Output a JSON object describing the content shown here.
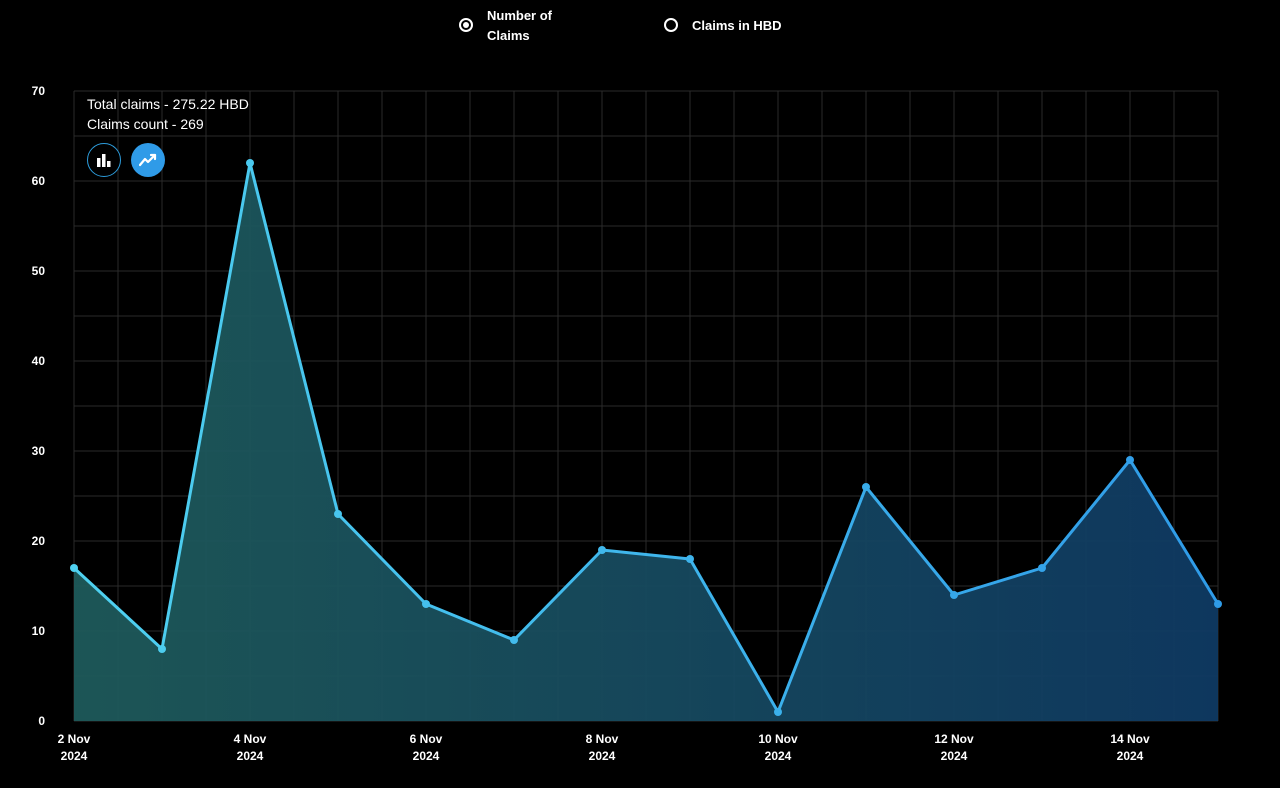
{
  "toggle": {
    "options": [
      {
        "label_line1": "Number of",
        "label_line2": "Claims",
        "selected": true
      },
      {
        "label": "Claims in HBD",
        "selected": false
      }
    ]
  },
  "summary": {
    "total_claims": "Total claims - 275.22 HBD",
    "claims_count": "Claims count - 269"
  },
  "chart_type_buttons": [
    {
      "icon": "bar-chart-icon",
      "active": false
    },
    {
      "icon": "line-chart-icon",
      "active": true
    }
  ],
  "chart_data": {
    "type": "area",
    "x": [
      "2024-11-02",
      "2024-11-03",
      "2024-11-04",
      "2024-11-05",
      "2024-11-06",
      "2024-11-07",
      "2024-11-08",
      "2024-11-09",
      "2024-11-10",
      "2024-11-11",
      "2024-11-12",
      "2024-11-13",
      "2024-11-14",
      "2024-11-15"
    ],
    "values": [
      17,
      8,
      62,
      23,
      13,
      9,
      19,
      18,
      1,
      26,
      14,
      17,
      29,
      13
    ],
    "ylim": [
      0,
      70
    ],
    "yticks": [
      0,
      10,
      20,
      30,
      40,
      50,
      60,
      70
    ],
    "xtick_labels": [
      {
        "day": "2 Nov",
        "year": "2024"
      },
      {
        "day": "4 Nov",
        "year": "2024"
      },
      {
        "day": "6 Nov",
        "year": "2024"
      },
      {
        "day": "8 Nov",
        "year": "2024"
      },
      {
        "day": "10 Nov",
        "year": "2024"
      },
      {
        "day": "12 Nov",
        "year": "2024"
      },
      {
        "day": "14 Nov",
        "year": "2024"
      }
    ],
    "grid": true,
    "colors": {
      "line_start": "#4fd1f0",
      "line_end": "#2f9be8",
      "fill_start": "#1e5a5a",
      "fill_end": "#0f3a63"
    }
  }
}
